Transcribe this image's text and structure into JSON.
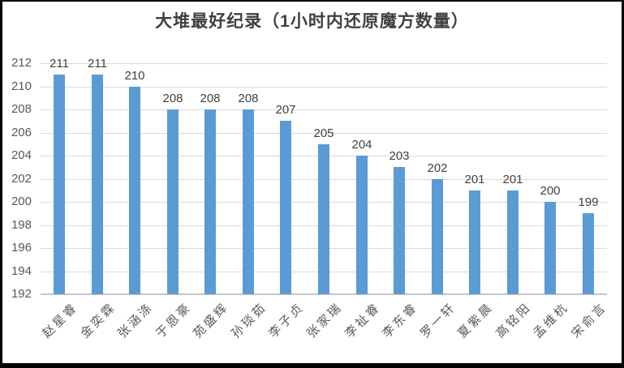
{
  "chart_data": {
    "type": "bar",
    "title": "大堆最好纪录（1小时内还原魔方数量）",
    "categories": [
      "赵星睿",
      "金奕霖",
      "张涵涤",
      "于恩豪",
      "苑盛辉",
      "孙琰茹",
      "李子贞",
      "张家瑞",
      "李祉睿",
      "李东睿",
      "罗一轩",
      "夏紫晨",
      "高铭阳",
      "孟维杭",
      "宋俞言"
    ],
    "values": [
      211,
      211,
      210,
      208,
      208,
      208,
      207,
      205,
      204,
      203,
      202,
      201,
      201,
      200,
      199
    ],
    "xlabel": "",
    "ylabel": "",
    "ylim": [
      192,
      212
    ],
    "ytick_step": 2,
    "ytick_labels": [
      "212",
      "210",
      "208",
      "206",
      "204",
      "202",
      "200",
      "198",
      "196",
      "194",
      "192"
    ],
    "grid": true,
    "legend": "none",
    "show_data_labels": true
  },
  "colors": {
    "bar": "#5B9BD5",
    "gridline": "#D9D9D9",
    "axis_line": "#C6C6C6",
    "title": "#404040",
    "data_label": "#404040",
    "tick_label": "#595959",
    "frame": "#000000",
    "background": "#FFFFFF"
  }
}
